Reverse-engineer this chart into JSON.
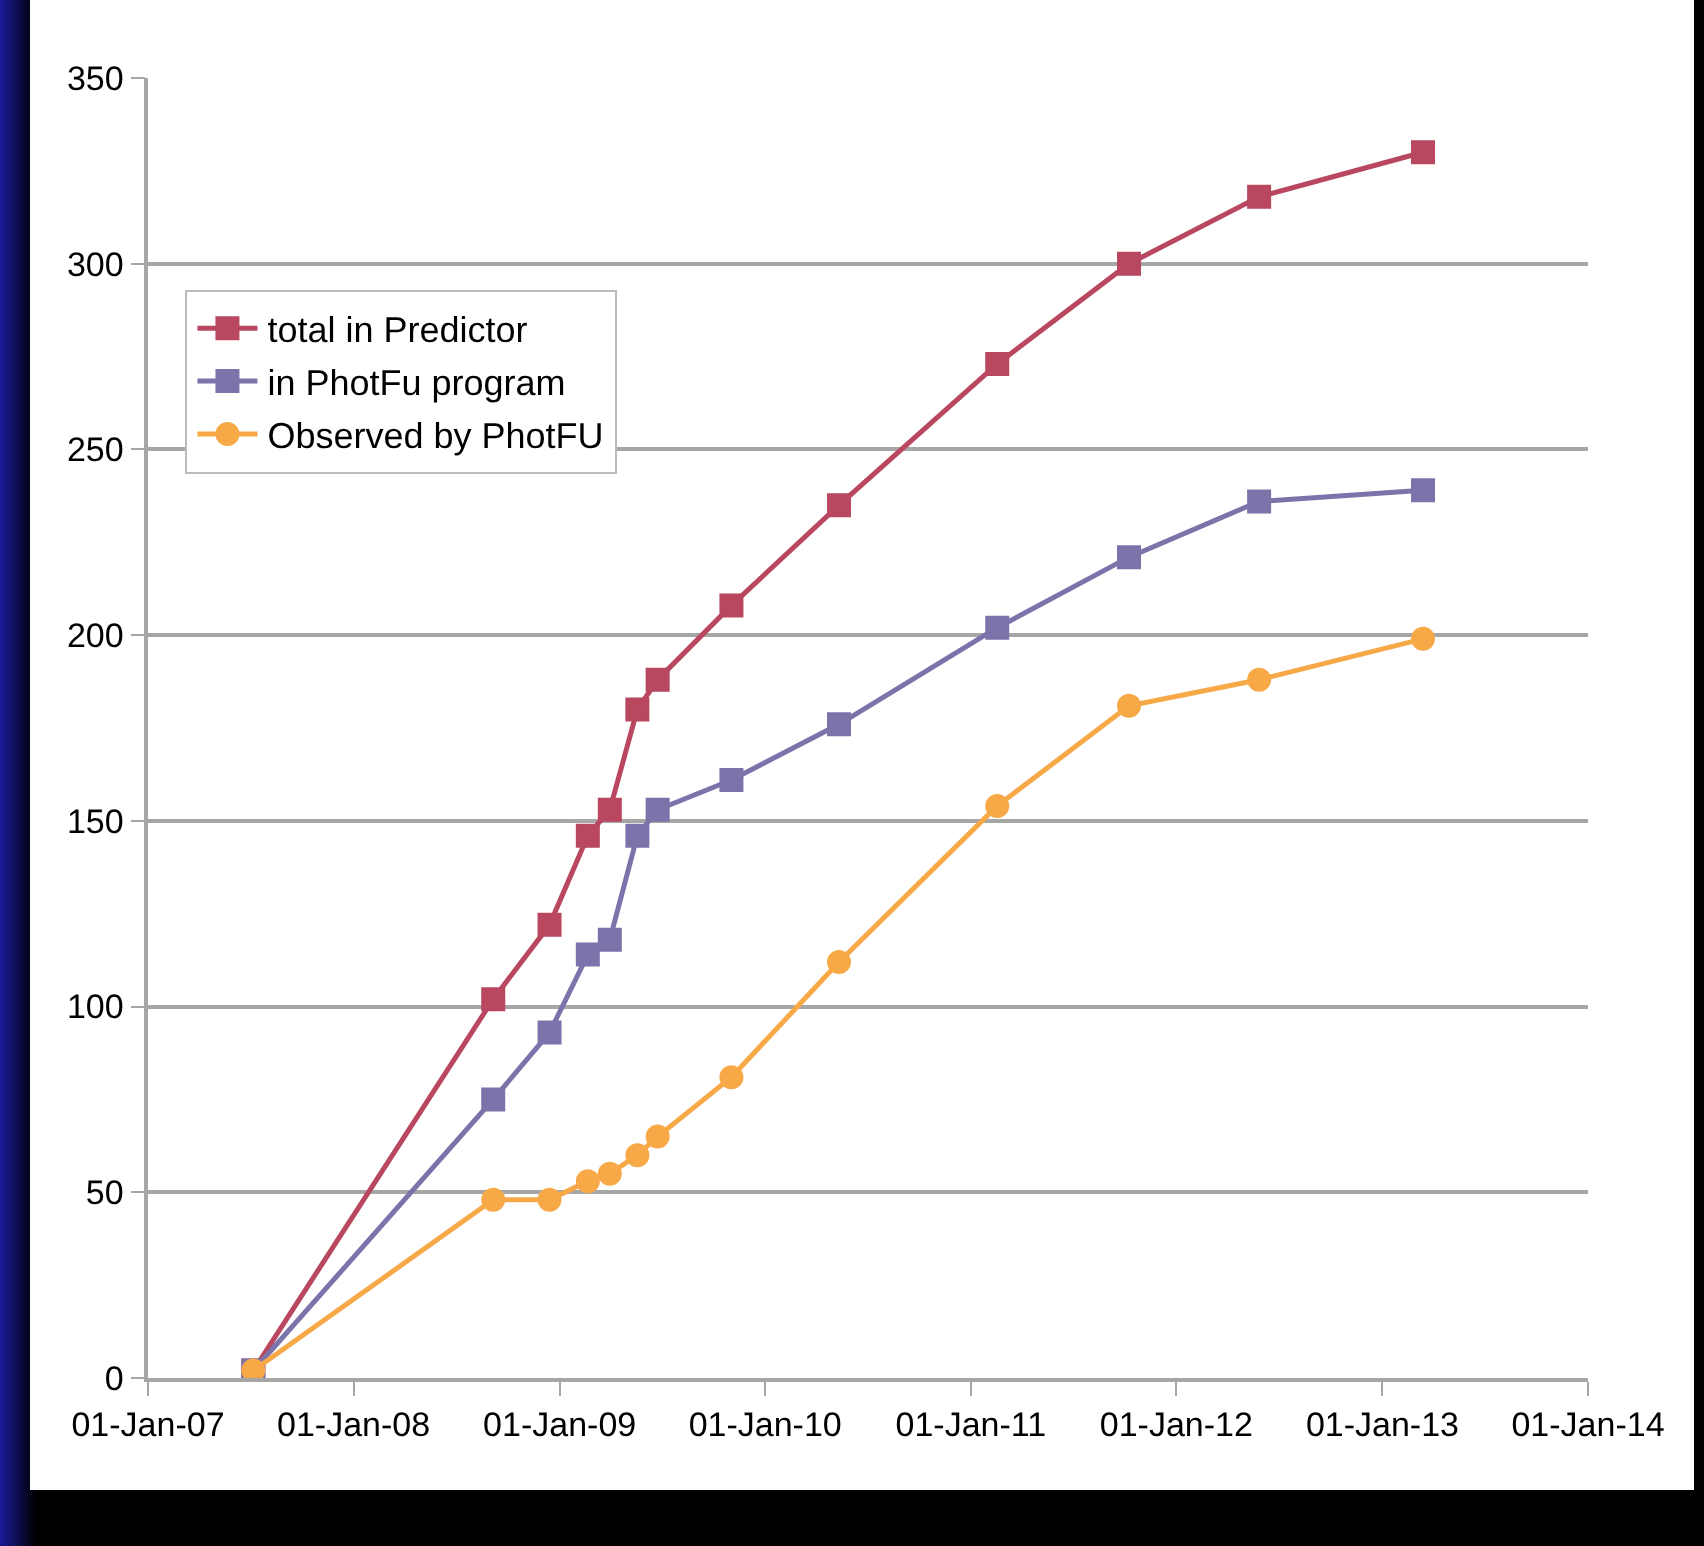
{
  "chart_data": {
    "type": "line",
    "xlim": [
      "2007-01-01",
      "2014-01-01"
    ],
    "xticks": [
      {
        "value": "2007-01-01",
        "label": "01-Jan-07"
      },
      {
        "value": "2008-01-01",
        "label": "01-Jan-08"
      },
      {
        "value": "2009-01-01",
        "label": "01-Jan-09"
      },
      {
        "value": "2010-01-01",
        "label": "01-Jan-10"
      },
      {
        "value": "2011-01-01",
        "label": "01-Jan-11"
      },
      {
        "value": "2012-01-01",
        "label": "01-Jan-12"
      },
      {
        "value": "2013-01-01",
        "label": "01-Jan-13"
      },
      {
        "value": "2014-01-01",
        "label": "01-Jan-14"
      }
    ],
    "ylim": [
      0,
      350
    ],
    "yticks": [
      0,
      50,
      100,
      150,
      200,
      250,
      300,
      350
    ],
    "grid": "y",
    "legend": "top left",
    "x": [
      "2007-07-07",
      "2008-09-05",
      "2008-12-14",
      "2009-02-20",
      "2009-03-31",
      "2009-05-19",
      "2009-06-24",
      "2009-11-02",
      "2010-05-12",
      "2011-02-17",
      "2011-10-09",
      "2012-05-27",
      "2013-03-14"
    ],
    "series": [
      {
        "name": "total in Predictor",
        "color": "#b8475f",
        "marker": "square",
        "values": [
          2,
          102,
          122,
          146,
          153,
          180,
          188,
          208,
          235,
          273,
          300,
          318,
          330
        ]
      },
      {
        "name": "in PhotFu program",
        "color": "#7b74ab",
        "marker": "square",
        "values": [
          2,
          75,
          93,
          114,
          118,
          146,
          153,
          161,
          176,
          202,
          221,
          236,
          239
        ]
      },
      {
        "name": "Observed by PhotFU",
        "color": "#f7a947",
        "marker": "circle",
        "values": [
          2,
          48,
          48,
          53,
          55,
          60,
          65,
          81,
          112,
          154,
          181,
          188,
          199
        ]
      }
    ]
  }
}
